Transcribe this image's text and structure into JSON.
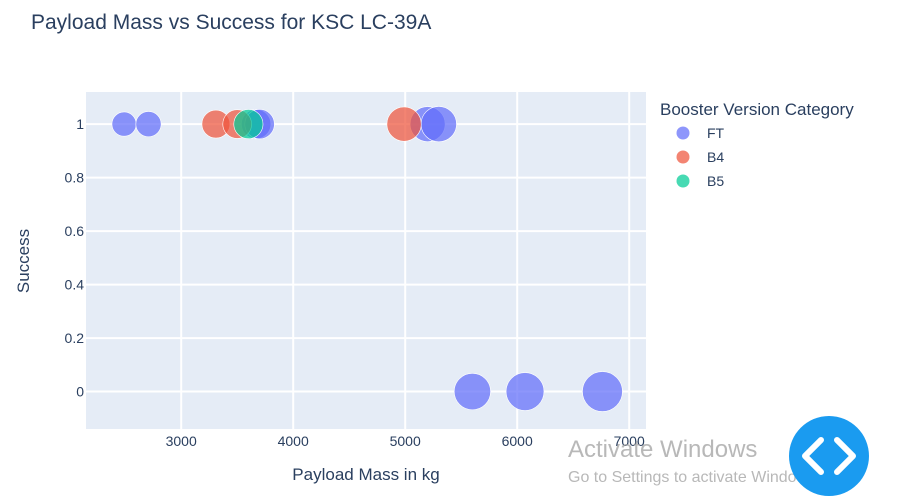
{
  "chart_data": {
    "type": "scatter",
    "title": "Payload Mass vs Success for KSC LC-39A",
    "xlabel": "Payload Mass in kg",
    "ylabel": "Success",
    "xlim": [
      2150,
      7150
    ],
    "ylim": [
      -0.14,
      1.12
    ],
    "x_ticks": [
      3000,
      4000,
      5000,
      6000,
      7000
    ],
    "y_ticks": [
      0,
      0.2,
      0.4,
      0.6,
      0.8,
      1
    ],
    "x_tick_labels": [
      "3000",
      "4000",
      "5000",
      "6000",
      "7000"
    ],
    "y_tick_labels": [
      "0",
      "0.2",
      "0.4",
      "0.6",
      "0.8",
      "1"
    ],
    "grid": true,
    "legend_title": "Booster Version Category",
    "legend_placement": "top-right outside",
    "marker_size_encodes": "payload mass",
    "series": [
      {
        "name": "FT",
        "color": "#636efa",
        "points": [
          {
            "x": 2490,
            "y": 1
          },
          {
            "x": 2708,
            "y": 1
          },
          {
            "x": 3669,
            "y": 1
          },
          {
            "x": 3700,
            "y": 1
          },
          {
            "x": 5200,
            "y": 1
          },
          {
            "x": 5300,
            "y": 1
          },
          {
            "x": 5600,
            "y": 0
          },
          {
            "x": 6070,
            "y": 0
          },
          {
            "x": 6761,
            "y": 0
          }
        ]
      },
      {
        "name": "B4",
        "color": "#ef553b",
        "points": [
          {
            "x": 3310,
            "y": 1
          },
          {
            "x": 3500,
            "y": 1
          },
          {
            "x": 4990,
            "y": 1
          }
        ]
      },
      {
        "name": "B5",
        "color": "#00cc96",
        "points": [
          {
            "x": 3600,
            "y": 1
          }
        ]
      }
    ]
  },
  "watermark": {
    "line1": "Activate Windows",
    "line2": "Go to Settings to activate Windows."
  },
  "fab": {
    "icon": "code-brackets-icon",
    "color": "#1a9bf0"
  }
}
